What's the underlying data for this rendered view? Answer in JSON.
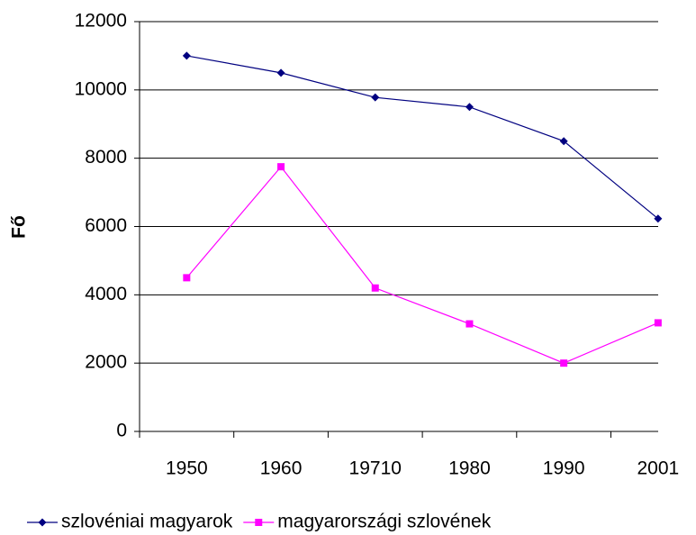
{
  "chart_data": {
    "type": "line",
    "y_label": "Fő",
    "categories": [
      "1950",
      "1960",
      "19710",
      "1980",
      "1990",
      "2001"
    ],
    "series": [
      {
        "name": "szlovéniai magyarok",
        "color": "#000080",
        "marker": "diamond",
        "values": [
          11000,
          10500,
          9780,
          9500,
          8500,
          6230
        ]
      },
      {
        "name": "magyarországi szlovének",
        "color": "#ff00ff",
        "marker": "square",
        "values": [
          4500,
          7750,
          4200,
          3150,
          2000,
          3180
        ]
      }
    ],
    "ylim": [
      0,
      12000
    ],
    "yticks": [
      0,
      2000,
      4000,
      6000,
      8000,
      10000,
      12000
    ],
    "grid": true
  }
}
